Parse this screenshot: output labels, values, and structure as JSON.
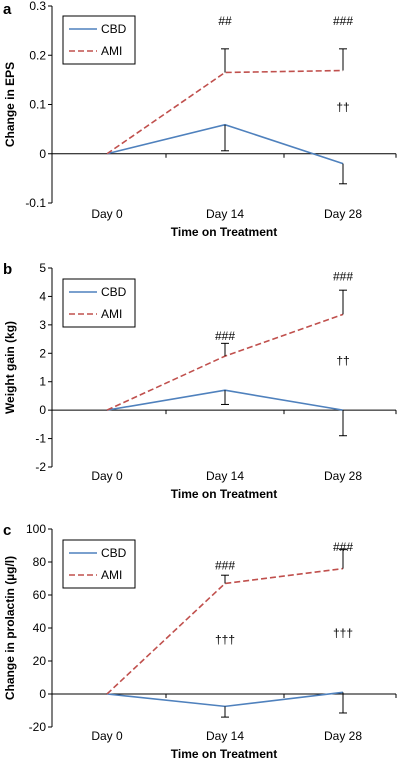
{
  "colors": {
    "cbd": "#4f81bd",
    "ami": "#c0504d",
    "axis": "#000000"
  },
  "chart_data": [
    {
      "panel": "a",
      "type": "line",
      "categories": [
        "Day 0",
        "Day 14",
        "Day 28"
      ],
      "series": [
        {
          "name": "CBD",
          "values": [
            0,
            0.059,
            -0.02
          ],
          "error_low": [
            0,
            0.053,
            0.041
          ],
          "error_high": [
            0,
            0,
            0
          ],
          "style": "solid",
          "color_key": "cbd"
        },
        {
          "name": "AMI",
          "values": [
            0,
            0.165,
            0.169
          ],
          "error_low": [
            0,
            0,
            0
          ],
          "error_high": [
            0,
            0.048,
            0.044
          ],
          "style": "dashed",
          "color_key": "ami"
        }
      ],
      "ylabel": "Change in EPS",
      "xlabel": "Time on Treatment",
      "ylim": [
        -0.1,
        0.3
      ],
      "yticks": [
        -0.1,
        0,
        0.1,
        0.2,
        0.3
      ],
      "ytick_labels": [
        "-0.1",
        "0",
        "0.1",
        "0.2",
        "0.3"
      ],
      "annotations": [
        {
          "text": "##",
          "category": 1,
          "y": 0.27
        },
        {
          "text": "###",
          "category": 2,
          "y": 0.27
        },
        {
          "text": "††",
          "category": 2,
          "y": 0.095
        }
      ],
      "legend": "top-left"
    },
    {
      "panel": "b",
      "type": "line",
      "categories": [
        "Day 0",
        "Day 14",
        "Day 28"
      ],
      "series": [
        {
          "name": "CBD",
          "values": [
            0,
            0.7,
            0
          ],
          "error_low": [
            0,
            0.5,
            0.9
          ],
          "error_high": [
            0,
            0,
            0
          ],
          "style": "solid",
          "color_key": "cbd"
        },
        {
          "name": "AMI",
          "values": [
            0,
            1.9,
            3.37
          ],
          "error_low": [
            0,
            0,
            0
          ],
          "error_high": [
            0,
            0.45,
            0.85
          ],
          "style": "dashed",
          "color_key": "ami"
        }
      ],
      "ylabel": "Weight gain (kg)",
      "xlabel": "Time on Treatment",
      "ylim": [
        -2,
        5
      ],
      "yticks": [
        -2,
        -1,
        0,
        1,
        2,
        3,
        4,
        5
      ],
      "ytick_labels": [
        "-2",
        "-1",
        "0",
        "1",
        "2",
        "3",
        "4",
        "5"
      ],
      "annotations": [
        {
          "text": "###",
          "category": 1,
          "y": 2.6
        },
        {
          "text": "###",
          "category": 2,
          "y": 4.7
        },
        {
          "text": "††",
          "category": 2,
          "y": 1.75
        }
      ],
      "legend": "top-left"
    },
    {
      "panel": "c",
      "type": "line",
      "categories": [
        "Day 0",
        "Day 14",
        "Day 28"
      ],
      "series": [
        {
          "name": "CBD",
          "values": [
            0,
            -7.5,
            1
          ],
          "error_low": [
            0,
            6.5,
            12.5
          ],
          "error_high": [
            0,
            0,
            0
          ],
          "style": "solid",
          "color_key": "cbd"
        },
        {
          "name": "AMI",
          "values": [
            0,
            67,
            76
          ],
          "error_low": [
            0,
            0,
            0
          ],
          "error_high": [
            0,
            5,
            11.5
          ],
          "style": "dashed",
          "color_key": "ami"
        }
      ],
      "ylabel": "Change in prolactin (µg/l)",
      "xlabel": "Time on Treatment",
      "ylim": [
        -20,
        100
      ],
      "yticks": [
        -20,
        0,
        20,
        40,
        60,
        80,
        100
      ],
      "ytick_labels": [
        "-20",
        "0",
        "20",
        "40",
        "60",
        "80",
        "100"
      ],
      "annotations": [
        {
          "text": "###",
          "category": 1,
          "y": 78
        },
        {
          "text": "###",
          "category": 2,
          "y": 89
        },
        {
          "text": "†††",
          "category": 1,
          "y": 33
        },
        {
          "text": "†††",
          "category": 2,
          "y": 37
        }
      ],
      "legend": "top-left"
    }
  ]
}
